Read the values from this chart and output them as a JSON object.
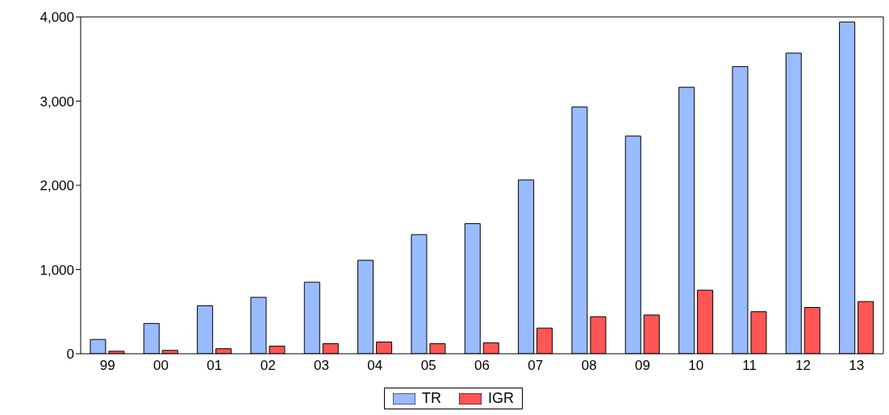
{
  "chart_data": {
    "type": "bar",
    "categories": [
      "99",
      "00",
      "01",
      "02",
      "03",
      "04",
      "05",
      "06",
      "07",
      "08",
      "09",
      "10",
      "11",
      "12",
      "13"
    ],
    "series": [
      {
        "name": "TR",
        "color": "#99bbff",
        "values": [
          170,
          360,
          570,
          670,
          850,
          1110,
          1415,
          1545,
          2065,
          2930,
          2585,
          3165,
          3410,
          3570,
          3940
        ]
      },
      {
        "name": "IGR",
        "color": "#ff5555",
        "values": [
          30,
          40,
          60,
          90,
          120,
          140,
          120,
          130,
          305,
          440,
          460,
          755,
          500,
          550,
          620
        ]
      }
    ],
    "ylim": [
      0,
      4000
    ],
    "yticks": [
      {
        "value": 0,
        "label": "0"
      },
      {
        "value": 1000,
        "label": "1,000"
      },
      {
        "value": 2000,
        "label": "2,000"
      },
      {
        "value": 3000,
        "label": "3,000"
      },
      {
        "value": 4000,
        "label": "4,000"
      }
    ],
    "grid": false,
    "legend": "bottom"
  }
}
